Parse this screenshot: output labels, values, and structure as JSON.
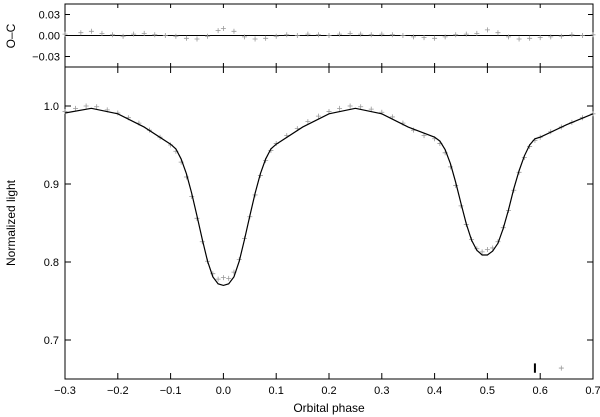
{
  "chart_data": [
    {
      "type": "scatter",
      "ylabel": "O–C",
      "ylim": [
        -0.045,
        0.045
      ],
      "yticks": [
        "0.03",
        "0.00",
        "−0.03"
      ],
      "ytick_values": [
        0.03,
        0.0,
        -0.03
      ],
      "zero_line": true,
      "series": [
        {
          "marker": "+",
          "color": "#999999",
          "x": [
            -0.3,
            -0.27,
            -0.25,
            -0.23,
            -0.21,
            -0.19,
            -0.17,
            -0.15,
            -0.13,
            -0.11,
            -0.09,
            -0.07,
            -0.05,
            -0.03,
            -0.01,
            0.0,
            0.02,
            0.04,
            0.06,
            0.08,
            0.1,
            0.12,
            0.14,
            0.16,
            0.18,
            0.2,
            0.22,
            0.24,
            0.26,
            0.28,
            0.3,
            0.32,
            0.34,
            0.36,
            0.38,
            0.4,
            0.42,
            0.44,
            0.46,
            0.48,
            0.5,
            0.52,
            0.54,
            0.56,
            0.58,
            0.6,
            0.62,
            0.64,
            0.66,
            0.68,
            0.7
          ],
          "y": [
            0.002,
            0.004,
            0.006,
            0.003,
            0.001,
            -0.001,
            0.002,
            0.003,
            0.001,
            0.0,
            -0.001,
            -0.004,
            -0.005,
            -0.001,
            0.007,
            0.01,
            0.006,
            -0.002,
            -0.005,
            -0.004,
            -0.001,
            0.001,
            0.0,
            0.002,
            0.001,
            0.0,
            0.002,
            0.003,
            0.002,
            0.001,
            0.002,
            0.001,
            0.0,
            -0.002,
            -0.003,
            -0.004,
            -0.002,
            0.001,
            0.002,
            0.003,
            0.008,
            0.004,
            -0.002,
            -0.005,
            -0.004,
            -0.003,
            -0.002,
            -0.001,
            0.001,
            0.0,
            0.001
          ]
        }
      ]
    },
    {
      "type": "line",
      "xlabel": "Orbital phase",
      "ylabel": "Normalized light",
      "xlim": [
        -0.3,
        0.7
      ],
      "ylim": [
        0.65,
        1.05
      ],
      "xticks": [
        "−0.3",
        "−0.2",
        "−0.1",
        "0.0",
        "0.1",
        "0.2",
        "0.3",
        "0.4",
        "0.5",
        "0.6",
        "0.7"
      ],
      "xtick_values": [
        -0.3,
        -0.2,
        -0.1,
        0.0,
        0.1,
        0.2,
        0.3,
        0.4,
        0.5,
        0.6,
        0.7
      ],
      "yticks": [
        "0.7",
        "0.8",
        "0.9",
        "1.0"
      ],
      "ytick_values": [
        0.7,
        0.8,
        0.9,
        1.0
      ],
      "model_curve": {
        "color": "#000000",
        "x": [
          -0.3,
          -0.25,
          -0.2,
          -0.15,
          -0.1,
          -0.09,
          -0.08,
          -0.07,
          -0.06,
          -0.05,
          -0.04,
          -0.03,
          -0.02,
          -0.01,
          0.0,
          0.01,
          0.02,
          0.03,
          0.04,
          0.05,
          0.06,
          0.07,
          0.08,
          0.09,
          0.1,
          0.15,
          0.2,
          0.25,
          0.3,
          0.35,
          0.4,
          0.41,
          0.42,
          0.43,
          0.44,
          0.45,
          0.46,
          0.47,
          0.48,
          0.49,
          0.5,
          0.51,
          0.52,
          0.53,
          0.54,
          0.55,
          0.56,
          0.57,
          0.58,
          0.59,
          0.6,
          0.65,
          0.7
        ],
        "y": [
          0.991,
          0.997,
          0.99,
          0.973,
          0.951,
          0.945,
          0.932,
          0.913,
          0.888,
          0.859,
          0.829,
          0.801,
          0.781,
          0.772,
          0.77,
          0.772,
          0.781,
          0.801,
          0.829,
          0.859,
          0.888,
          0.913,
          0.932,
          0.945,
          0.951,
          0.973,
          0.99,
          0.997,
          0.99,
          0.973,
          0.96,
          0.955,
          0.944,
          0.926,
          0.902,
          0.875,
          0.849,
          0.828,
          0.815,
          0.809,
          0.809,
          0.814,
          0.824,
          0.843,
          0.867,
          0.894,
          0.917,
          0.936,
          0.95,
          0.958,
          0.96,
          0.976,
          0.99
        ]
      },
      "observations": {
        "marker": "+",
        "color": "#999999",
        "x": [
          -0.3,
          -0.28,
          -0.26,
          -0.24,
          -0.22,
          -0.2,
          -0.18,
          -0.16,
          -0.14,
          -0.12,
          -0.1,
          -0.09,
          -0.08,
          -0.07,
          -0.06,
          -0.05,
          -0.04,
          -0.03,
          -0.02,
          -0.01,
          0.0,
          0.01,
          0.02,
          0.03,
          0.04,
          0.05,
          0.06,
          0.07,
          0.08,
          0.09,
          0.1,
          0.12,
          0.14,
          0.16,
          0.18,
          0.2,
          0.22,
          0.24,
          0.26,
          0.28,
          0.3,
          0.32,
          0.34,
          0.36,
          0.38,
          0.4,
          0.41,
          0.42,
          0.43,
          0.44,
          0.45,
          0.46,
          0.47,
          0.48,
          0.49,
          0.5,
          0.51,
          0.52,
          0.53,
          0.54,
          0.55,
          0.56,
          0.57,
          0.58,
          0.59,
          0.6,
          0.62,
          0.64,
          0.66,
          0.68,
          0.7
        ],
        "y": [
          0.993,
          0.997,
          1.0,
          0.999,
          0.995,
          0.991,
          0.985,
          0.978,
          0.969,
          0.96,
          0.95,
          0.942,
          0.928,
          0.909,
          0.884,
          0.856,
          0.826,
          0.801,
          0.785,
          0.778,
          0.78,
          0.779,
          0.787,
          0.803,
          0.83,
          0.858,
          0.886,
          0.911,
          0.93,
          0.943,
          0.952,
          0.962,
          0.971,
          0.98,
          0.987,
          0.993,
          0.997,
          1.0,
          0.999,
          0.996,
          0.992,
          0.986,
          0.978,
          0.969,
          0.962,
          0.958,
          0.952,
          0.94,
          0.922,
          0.898,
          0.872,
          0.848,
          0.829,
          0.817,
          0.813,
          0.816,
          0.818,
          0.826,
          0.844,
          0.866,
          0.892,
          0.915,
          0.934,
          0.948,
          0.956,
          0.96,
          0.967,
          0.973,
          0.979,
          0.985,
          0.99
        ]
      },
      "annotation": {
        "error_bar": {
          "x": 0.59,
          "y_center": 0.664,
          "halfwidth": 0.006
        },
        "sample_marker": {
          "x": 0.64,
          "y": 0.664
        }
      }
    }
  ]
}
